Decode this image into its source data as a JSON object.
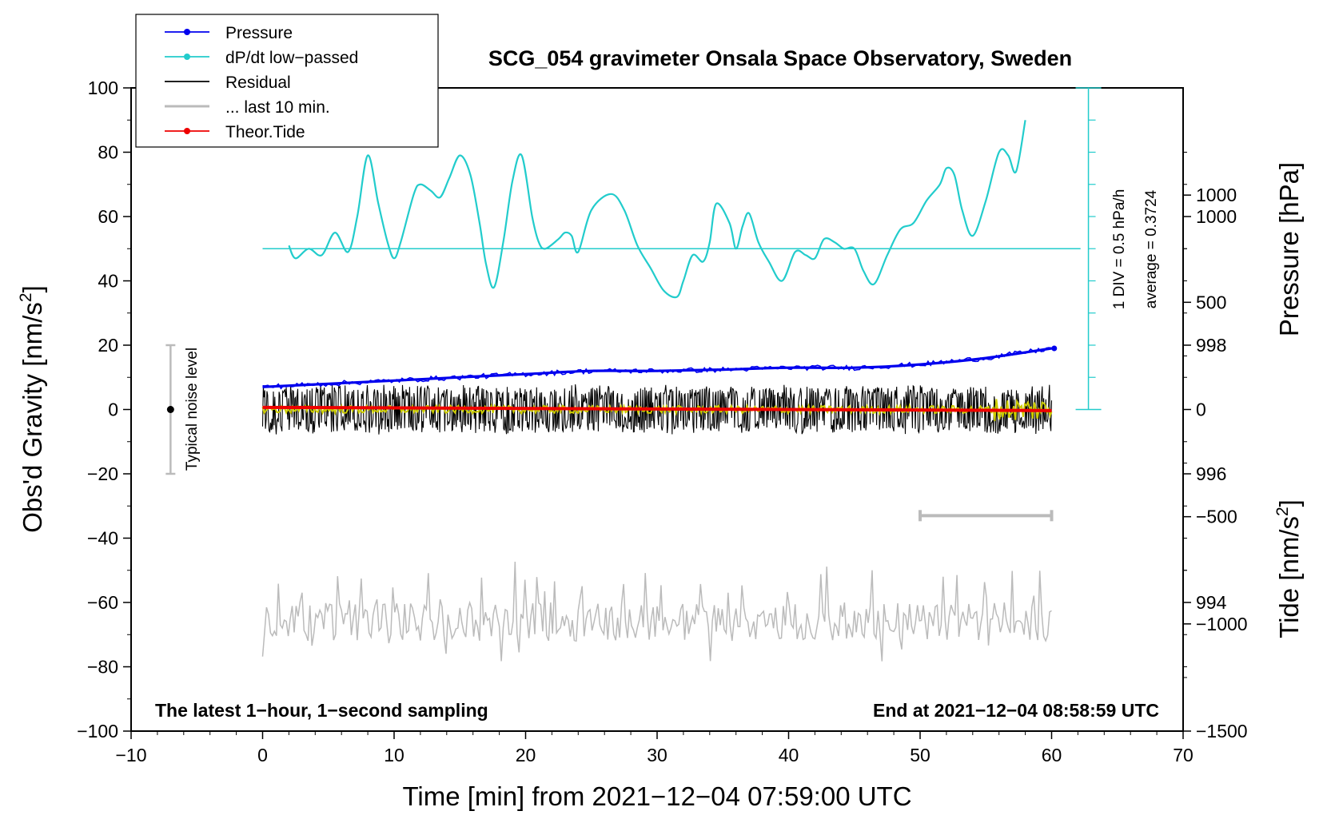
{
  "chart_data": {
    "type": "line",
    "title": "SCG_054 gravimeter Onsala Space Observatory, Sweden",
    "xlabel": "Time [min] from 2021−12−04 07:59:00 UTC",
    "ylabel_left": "Obs'd Gravity [nm/s",
    "ylabel_left_suffix": "]",
    "ylabel_right_pressure": "Pressure [hPa]",
    "ylabel_right_tide": "Tide [nm/s",
    "ylabel_right_tide_suffix": "]",
    "superscript": "2",
    "xlim": [
      -10,
      70
    ],
    "ylim": [
      -100,
      100
    ],
    "pressure_ylim": [
      992,
      1002
    ],
    "tide_ylim": [
      -1500,
      1500
    ],
    "x_ticks": [
      "−10",
      "0",
      "10",
      "20",
      "30",
      "40",
      "50",
      "60",
      "70"
    ],
    "x_tick_values": [
      -10,
      0,
      10,
      20,
      30,
      40,
      50,
      60,
      70
    ],
    "y_ticks": [
      "100",
      "80",
      "60",
      "40",
      "20",
      "0",
      "−20",
      "−40",
      "−60",
      "−80",
      "−100"
    ],
    "y_tick_values": [
      100,
      80,
      60,
      40,
      20,
      0,
      -20,
      -40,
      -60,
      -80,
      -100
    ],
    "pressure_ticks": [
      "1000",
      "998",
      "996",
      "994"
    ],
    "pressure_tick_values": [
      1000,
      998,
      996,
      994
    ],
    "tide_ticks": [
      "1000",
      "500",
      "0",
      "−500",
      "−1000",
      "−1500"
    ],
    "tide_tick_values": [
      1000,
      500,
      0,
      -500,
      -1000,
      -1500
    ],
    "legend": [
      {
        "label": "Pressure",
        "color": "#0000ee",
        "marker": true
      },
      {
        "label": "dP/dt low−passed",
        "color": "#22cccc",
        "marker": true
      },
      {
        "label": "Residual",
        "color": "#000000",
        "marker": false
      },
      {
        "label": "... last 10 min.",
        "color": "#bbbbbb",
        "marker": false
      },
      {
        "label": "Theor.Tide",
        "color": "#ee0000",
        "marker": true
      }
    ],
    "dpdt_scale_label": "1 DIV = 0.5 hPa/h",
    "dpdt_average_label": "average = 0.3724",
    "noise_label": "Typical noise level",
    "noise_range": [
      -20,
      20
    ],
    "noise_x": -7,
    "gray_bar_x": [
      50,
      60
    ],
    "gray_bar_y": -33,
    "note_left": "The latest 1−hour, 1−second sampling",
    "note_right": "End at 2021−12−04 08:58:59 UTC",
    "dpdt_baseline": 50,
    "series": [
      {
        "name": "Pressure",
        "color": "#0000ee",
        "y_axis": "pressure",
        "x": [
          0,
          5,
          10,
          15,
          20,
          25,
          30,
          35,
          40,
          45,
          50,
          55,
          60
        ],
        "values": [
          997.35,
          997.4,
          997.45,
          997.5,
          997.55,
          997.6,
          997.6,
          997.62,
          997.65,
          997.65,
          997.7,
          997.8,
          997.95
        ]
      },
      {
        "name": "dP/dt low−passed",
        "color": "#22cccc",
        "y_axis": "gravity",
        "x": [
          2,
          2.5,
          3.5,
          4.5,
          5.5,
          6.5,
          7.2,
          8,
          8.8,
          9.5,
          10,
          10.5,
          11.5,
          12,
          12.8,
          13.5,
          14.2,
          15,
          15.8,
          16.5,
          17,
          17.6,
          18.3,
          19,
          19.7,
          20.5,
          21,
          21.5,
          22.5,
          23,
          23.5,
          24,
          25,
          26.5,
          27.5,
          28.5,
          29.5,
          30.5,
          31.5,
          32,
          32.7,
          33.5,
          34,
          34.5,
          35.5,
          36,
          36.5,
          37,
          37.7,
          38.5,
          39.5,
          40.5,
          41.3,
          42,
          42.7,
          43.5,
          44.2,
          45,
          45.7,
          46.5,
          47.5,
          48.5,
          49.5,
          50.5,
          51.5,
          52,
          52.6,
          53.2,
          54,
          55,
          56,
          56.7,
          57.3,
          58
        ],
        "values": [
          51,
          47,
          50,
          48,
          55,
          49,
          60,
          79,
          64,
          52,
          47,
          52,
          67,
          70,
          68,
          66,
          72,
          79,
          73,
          58,
          45,
          38,
          52,
          71,
          79,
          60,
          52,
          50,
          53,
          55,
          54,
          49,
          62,
          67,
          62,
          51,
          44,
          37,
          35,
          40,
          48,
          46,
          52,
          64,
          58,
          50,
          57,
          61,
          52,
          46,
          40,
          49,
          48,
          47,
          53,
          52,
          50,
          50,
          43,
          39,
          48,
          56,
          58,
          65,
          70,
          75,
          73,
          62,
          54,
          65,
          80,
          79,
          74,
          90
        ]
      },
      {
        "name": "Residual",
        "color": "#000000",
        "y_axis": "gravity",
        "x_range": [
          0,
          60
        ],
        "center": 0,
        "amplitude": 7
      },
      {
        "name": "Residual (smoothed)",
        "color": "#cccc00",
        "y_axis": "gravity",
        "x_range": [
          0,
          60
        ],
        "center": 0,
        "amplitude": 1.2
      },
      {
        "name": "... last 10 min.",
        "color": "#bbbbbb",
        "y_axis": "gravity",
        "x_range": [
          0,
          60
        ],
        "center": -66,
        "amplitude": 6
      },
      {
        "name": "Theor.Tide",
        "color": "#ee0000",
        "y_axis": "tide",
        "x": [
          0,
          60
        ],
        "values": [
          10,
          -5
        ]
      }
    ]
  }
}
